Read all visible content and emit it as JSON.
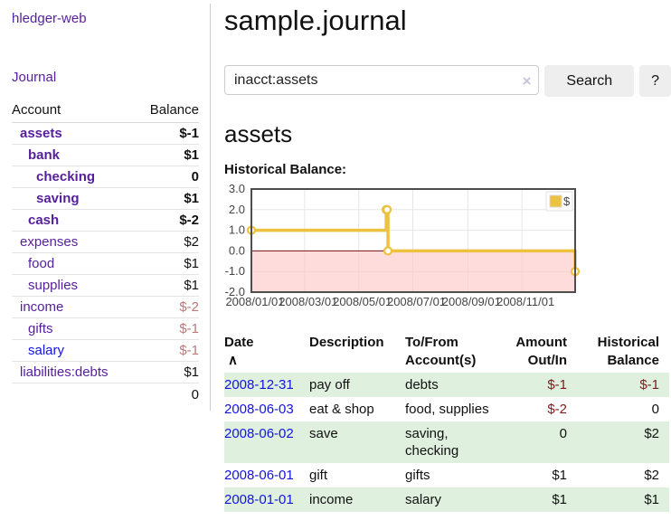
{
  "app": {
    "brand": "hledger-web"
  },
  "sidebar": {
    "nav_journal": "Journal",
    "headers": [
      "Account",
      "Balance"
    ],
    "rows": [
      {
        "account": "assets",
        "balance": "$-1",
        "indent": 1,
        "bold": true
      },
      {
        "account": "bank",
        "balance": "$1",
        "indent": 2,
        "bold": true
      },
      {
        "account": "checking",
        "balance": "0",
        "indent": 3,
        "bold": true
      },
      {
        "account": "saving",
        "balance": "$1",
        "indent": 3,
        "bold": true
      },
      {
        "account": "cash",
        "balance": "$-2",
        "indent": 2,
        "bold": true
      },
      {
        "account": "expenses",
        "balance": "$2",
        "indent": 1
      },
      {
        "account": "food",
        "balance": "$1",
        "indent": 2
      },
      {
        "account": "supplies",
        "balance": "$1",
        "indent": 2
      },
      {
        "account": "income",
        "balance": "$-2",
        "indent": 1,
        "muted": true
      },
      {
        "account": "gifts",
        "balance": "$-1",
        "indent": 2,
        "muted": true
      },
      {
        "account": "salary",
        "balance": "$-1",
        "indent": 2,
        "muted": true,
        "link": "blue"
      },
      {
        "account": "liabilities:debts",
        "balance": "$1",
        "indent": 1
      }
    ],
    "total": "0"
  },
  "main": {
    "title": "sample.journal",
    "search": {
      "value": "inacct:assets",
      "clear_icon": "×",
      "button_label": "Search",
      "help_label": "?"
    },
    "account_heading": "assets",
    "chart_label": "Historical Balance:"
  },
  "chart_data": {
    "type": "line",
    "title": "Historical Balance",
    "step": true,
    "series": [
      {
        "name": "$",
        "x": [
          "2008-01-01",
          "2008-06-01",
          "2008-06-02",
          "2008-06-03",
          "2008-12-31"
        ],
        "values": [
          1,
          2,
          2,
          0,
          -1
        ]
      }
    ],
    "xlim": [
      "2008-01-01",
      "2008-12-31"
    ],
    "ylim": [
      -2,
      3
    ],
    "yticks": [
      3,
      2,
      1,
      0,
      -1,
      -2
    ],
    "ytick_labels": [
      "3.0",
      "2.0",
      "1.0",
      "0.0",
      "-1.0",
      "-2.0"
    ],
    "xticks": [
      "2008-01-01",
      "2008-03-01",
      "2008-05-01",
      "2008-07-01",
      "2008-09-01",
      "2008-11-01"
    ],
    "xtick_labels": [
      "2008/01/01",
      "2008/03/01",
      "2008/05/01",
      "2008/07/01",
      "2008/09/01",
      "2008/11/01"
    ],
    "legend": {
      "position": "top-right",
      "entries": [
        {
          "label": "$",
          "color": "#edc240"
        }
      ]
    },
    "grid": true,
    "colors": {
      "line": "#edc240",
      "marker_fill": "#ffffff",
      "negative_region": "rgba(255,198,198,0.62)",
      "zero_line": "#7d1212",
      "grid": "#e6e6e6",
      "border": "#4d4d4d",
      "tick_text": "#444444"
    }
  },
  "register": {
    "sort_icon": "∧",
    "headers": [
      {
        "line1": "Date",
        "line2": ""
      },
      {
        "line1": "Description",
        "line2": ""
      },
      {
        "line1": "To/From",
        "line2": "Account(s)"
      },
      {
        "line1": "Amount",
        "line2": "Out/In"
      },
      {
        "line1": "Historical",
        "line2": "Balance"
      }
    ],
    "rows": [
      {
        "date": "2008-12-31",
        "description": "pay off",
        "accounts": "debts",
        "amount": "$-1",
        "balance": "$-1"
      },
      {
        "date": "2008-06-03",
        "description": "eat & shop",
        "accounts": "food, supplies",
        "amount": "$-2",
        "balance": "0"
      },
      {
        "date": "2008-06-02",
        "description": "save",
        "accounts": "saving, checking",
        "amount": "0",
        "balance": "$2"
      },
      {
        "date": "2008-06-01",
        "description": "gift",
        "accounts": "gifts",
        "amount": "$1",
        "balance": "$2"
      },
      {
        "date": "2008-01-01",
        "description": "income",
        "accounts": "salary",
        "amount": "$1",
        "balance": "$1"
      }
    ]
  }
}
